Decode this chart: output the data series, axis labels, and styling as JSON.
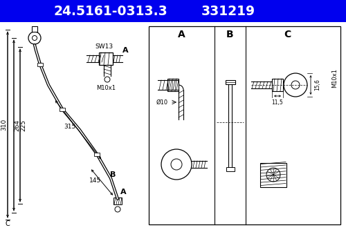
{
  "header_text1": "24.5161-0313.3",
  "header_text2": "331219",
  "header_bg": "#0000ee",
  "header_text_color": "#ffffff",
  "bg_color": "#ffffff",
  "dim_310": "310",
  "dim_264": "264",
  "dim_225": "225",
  "dim_315": "315",
  "dim_145": "145",
  "label_SW13": "SW13",
  "label_M10x1": "M10x1",
  "label_phi10": "Ø10",
  "label_11_5": "11,5",
  "label_15_6": "15,6",
  "label_M10x1_C": "M10x1",
  "sec_A": "A",
  "sec_B": "B",
  "sec_C": "C",
  "lbl_A1": "A",
  "lbl_A2": "A",
  "lbl_B": "B",
  "lbl_C": "C"
}
